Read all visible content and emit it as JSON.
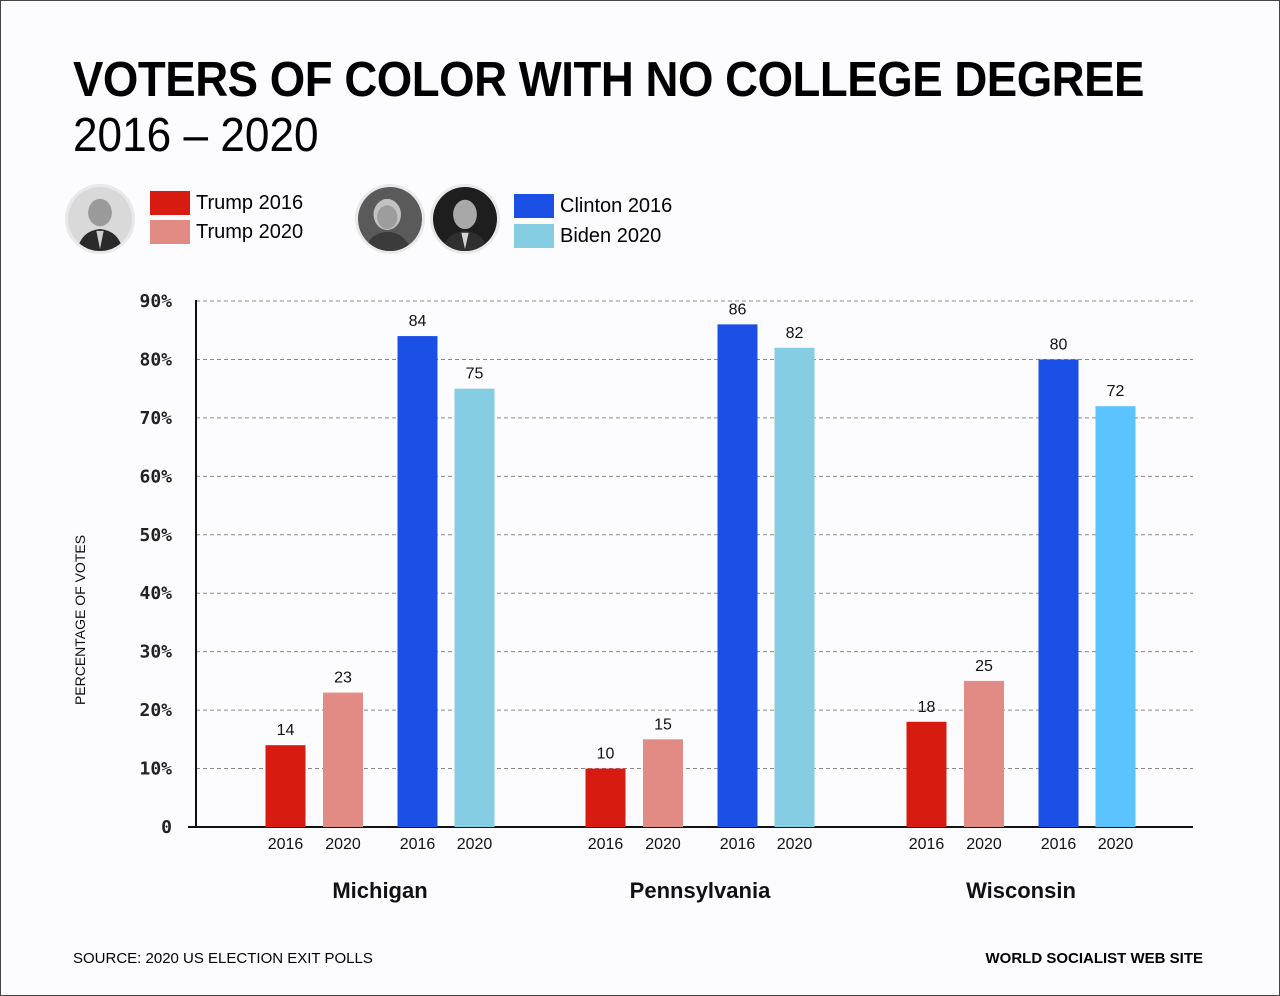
{
  "header": {
    "title": "VOTERS OF COLOR WITH NO COLLEGE DEGREE",
    "subtitle": "2016 – 2020"
  },
  "legend": {
    "portraits": [
      {
        "name": "trump-portrait",
        "person": "Donald Trump"
      },
      {
        "name": "clinton-portrait",
        "person": "Hillary Clinton"
      },
      {
        "name": "biden-portrait",
        "person": "Joe Biden"
      }
    ],
    "items": [
      {
        "label": "Trump 2016",
        "color": "#d81b10"
      },
      {
        "label": "Trump 2020",
        "color": "#e28a84"
      },
      {
        "label": "Clinton 2016",
        "color": "#1b50e6"
      },
      {
        "label": "Biden 2020",
        "color": "#85cde3"
      }
    ]
  },
  "footer": {
    "source": "SOURCE: 2020 US ELECTION EXIT POLLS",
    "credit": "WORLD SOCIALIST WEB SITE"
  },
  "chart_data": {
    "type": "bar",
    "title": "VOTERS OF COLOR WITH NO COLLEGE DEGREE",
    "subtitle": "2016 – 2020",
    "xlabel": "",
    "ylabel": "PERCENTAGE OF VOTES",
    "ylim": [
      0,
      90
    ],
    "yticks": [
      0,
      10,
      20,
      30,
      40,
      50,
      60,
      70,
      80,
      90
    ],
    "ytick_labels": [
      "0",
      "10%",
      "20%",
      "30%",
      "40%",
      "50%",
      "60%",
      "70%",
      "80%",
      "90%"
    ],
    "grid": true,
    "legend_position": "top-left",
    "categories": [
      "Michigan",
      "Pennsylvania",
      "Wisconsin"
    ],
    "bar_tick_labels": [
      "2016",
      "2020",
      "2016",
      "2020"
    ],
    "series": [
      {
        "name": "Trump 2016",
        "color": "#d81b10",
        "values": [
          14,
          10,
          18
        ]
      },
      {
        "name": "Trump 2020",
        "color": "#e28a84",
        "values": [
          23,
          15,
          25
        ]
      },
      {
        "name": "Clinton 2016",
        "color": "#1b50e6",
        "values": [
          84,
          86,
          80
        ]
      },
      {
        "name": "Biden 2020",
        "color": "#85cde3",
        "values": [
          75,
          82,
          72
        ],
        "overrides": {
          "Wisconsin": "#5bc3fd"
        }
      }
    ]
  }
}
